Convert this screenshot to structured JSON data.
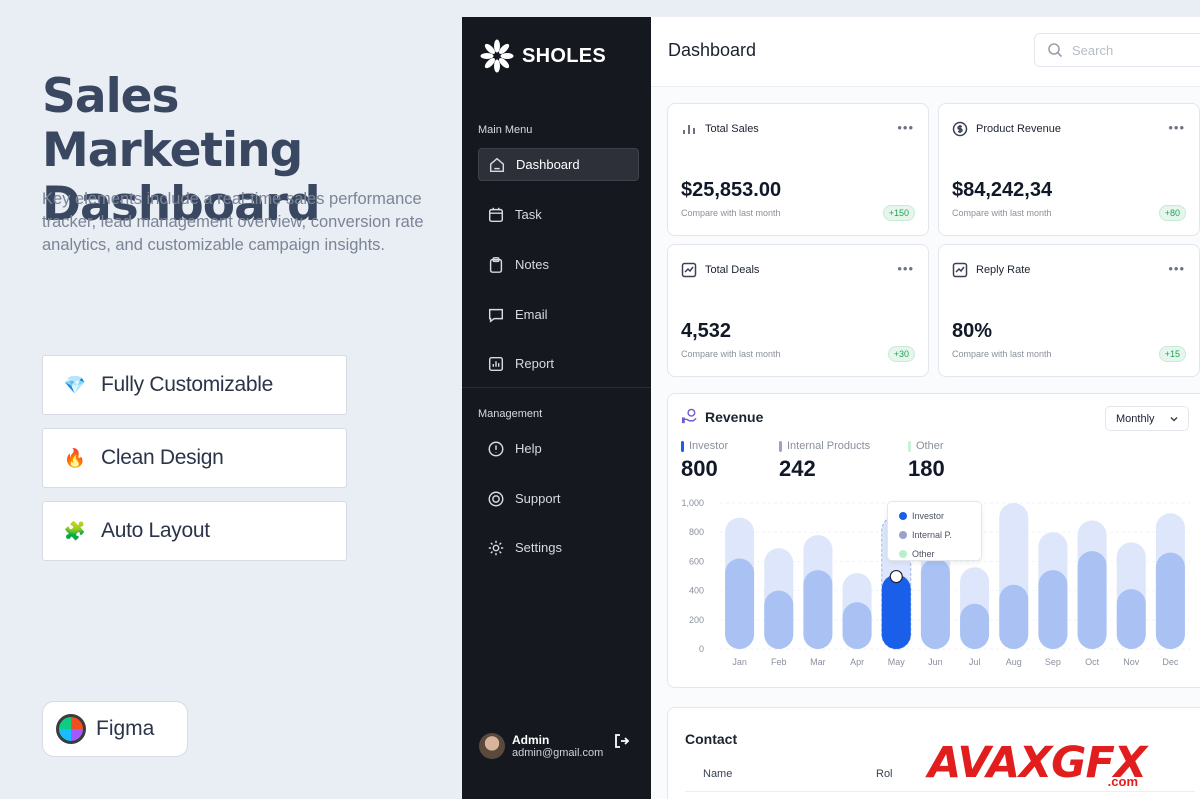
{
  "promo": {
    "title": "Sales Marketing Dashboard",
    "description": "Key elements include a real-time sales performance tracker, lead management overview, conversion rate analytics, and customizable campaign insights.",
    "features": [
      {
        "icon": "diamond-icon",
        "label": "Fully Customizable"
      },
      {
        "icon": "fire-icon",
        "label": "Clean Design"
      },
      {
        "icon": "puzzle-icon",
        "label": "Auto Layout"
      }
    ],
    "tool": "Figma"
  },
  "sidebar": {
    "brand": "SHOLES",
    "main_menu_label": "Main Menu",
    "main_items": [
      {
        "label": "Dashboard",
        "icon": "home-icon",
        "active": true
      },
      {
        "label": "Task",
        "icon": "calendar-icon"
      },
      {
        "label": "Notes",
        "icon": "clipboard-icon"
      },
      {
        "label": "Email",
        "icon": "chat-icon"
      },
      {
        "label": "Report",
        "icon": "bar-chart-icon"
      }
    ],
    "management_label": "Management",
    "management_items": [
      {
        "label": "Help",
        "icon": "alert-circle-icon"
      },
      {
        "label": "Support",
        "icon": "lifebuoy-icon"
      },
      {
        "label": "Settings",
        "icon": "gear-icon"
      }
    ],
    "user": {
      "name": "Admin",
      "email": "admin@gmail.com"
    }
  },
  "header": {
    "title": "Dashboard",
    "search_placeholder": "Search"
  },
  "stats": [
    {
      "title": "Total Sales",
      "icon": "bar-chart-icon",
      "value": "$25,853.00",
      "sub": "Compare with last month",
      "badge": "+150"
    },
    {
      "title": "Product Revenue",
      "icon": "dollar-circle-icon",
      "value": "$84,242,34",
      "sub": "Compare with last month",
      "badge": "+80"
    },
    {
      "title": "Total Deals",
      "icon": "trend-chart-icon",
      "value": "4,532",
      "sub": "Compare with last month",
      "badge": "+30"
    },
    {
      "title": "Reply Rate",
      "icon": "trend-chart-icon",
      "value": "80%",
      "sub": "Compare with last month",
      "badge": "+15"
    }
  ],
  "revenue": {
    "title": "Revenue",
    "period": "Monthly",
    "legend": [
      {
        "label": "Investor",
        "value": "800",
        "color": "#1d5ee8"
      },
      {
        "label": "Internal Products",
        "value": "242",
        "color": "#9aa3c7"
      },
      {
        "label": "Other",
        "value": "180",
        "color": "#c9f0d8"
      }
    ],
    "tooltip": [
      {
        "label": "Investor",
        "color": "#1d5ee8"
      },
      {
        "label": "Internal  P.",
        "color": "#9aa3c7"
      },
      {
        "label": "Other",
        "color": "#b8f0cc"
      }
    ]
  },
  "chart_data": {
    "type": "bar",
    "categories": [
      "Jan",
      "Feb",
      "Mar",
      "Apr",
      "May",
      "Jun",
      "Jul",
      "Aug",
      "Sep",
      "Oct",
      "Nov",
      "Dec"
    ],
    "series": [
      {
        "name": "Internal Products",
        "values": [
          900,
          690,
          780,
          520,
          910,
          760,
          560,
          1000,
          800,
          880,
          730,
          930
        ]
      },
      {
        "name": "Investor",
        "values": [
          620,
          400,
          540,
          320,
          510,
          620,
          310,
          440,
          540,
          670,
          410,
          660
        ]
      }
    ],
    "highlight": "May",
    "yticks": [
      0,
      200,
      400,
      600,
      800,
      1000
    ],
    "ytick_labels": [
      "0",
      "200",
      "400",
      "600",
      "800",
      "1,000"
    ],
    "ylim": [
      0,
      1000
    ],
    "colors": {
      "back": "#dde6fa",
      "front": "#a9c1f3",
      "highlight_front": "#1a5fea"
    }
  },
  "contact": {
    "title": "Contact",
    "columns": [
      "Name",
      "Rol"
    ]
  },
  "watermark": {
    "main": "AVAXGFX",
    "sub": ".com"
  }
}
